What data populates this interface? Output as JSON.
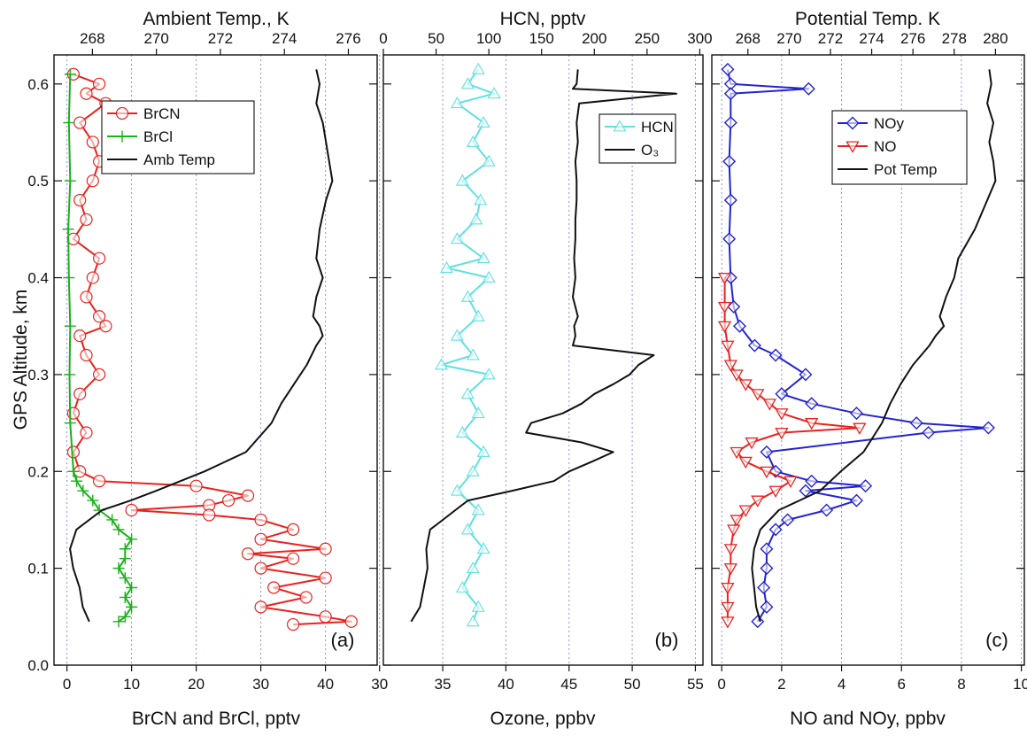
{
  "chart_data": [
    {
      "panel": "(a)",
      "type": "line",
      "y_axis": {
        "label": "GPS Altitude, km",
        "range": [
          0.0,
          0.63
        ],
        "ticks": [
          0.0,
          0.1,
          0.2,
          0.3,
          0.4,
          0.5,
          0.6
        ]
      },
      "x_bottom": {
        "label": "BrCN and BrCl, pptv",
        "range": [
          -2,
          48
        ],
        "ticks": [
          0,
          10,
          20,
          30,
          40
        ],
        "grid": true
      },
      "x_top": {
        "label": "Ambient Temp., K",
        "range": [
          266.8,
          276.9
        ],
        "ticks": [
          268,
          270,
          272,
          274,
          276
        ]
      },
      "legend": {
        "placement": "top-left"
      },
      "series": [
        {
          "name": "BrCN",
          "axis": "bottom",
          "color": "#e8231e",
          "marker": "circle",
          "y": [
            0.61,
            0.6,
            0.59,
            0.58,
            0.56,
            0.54,
            0.52,
            0.5,
            0.48,
            0.46,
            0.44,
            0.42,
            0.4,
            0.38,
            0.36,
            0.35,
            0.34,
            0.32,
            0.3,
            0.28,
            0.26,
            0.24,
            0.22,
            0.2,
            0.19,
            0.185,
            0.175,
            0.17,
            0.165,
            0.16,
            0.155,
            0.15,
            0.14,
            0.13,
            0.12,
            0.115,
            0.11,
            0.1,
            0.09,
            0.08,
            0.07,
            0.06,
            0.05,
            0.045,
            0.042
          ],
          "x": [
            1,
            5,
            3,
            6,
            2,
            4,
            5,
            4,
            2,
            3,
            1,
            5,
            4,
            3,
            5,
            6,
            2,
            3,
            5,
            2,
            1,
            3,
            1,
            2,
            5,
            20,
            28,
            25,
            22,
            10,
            22,
            30,
            35,
            30,
            40,
            28,
            35,
            30,
            40,
            32,
            37,
            30,
            40,
            44,
            35
          ]
        },
        {
          "name": "BrCl",
          "axis": "bottom",
          "color": "#19b219",
          "marker": "plus",
          "y": [
            0.61,
            0.56,
            0.5,
            0.45,
            0.4,
            0.35,
            0.3,
            0.25,
            0.2,
            0.19,
            0.18,
            0.17,
            0.16,
            0.15,
            0.14,
            0.13,
            0.12,
            0.11,
            0.1,
            0.09,
            0.08,
            0.07,
            0.06,
            0.05,
            0.045
          ],
          "x": [
            0.5,
            0.3,
            0.5,
            0.2,
            0.3,
            0.5,
            0.4,
            0.5,
            1,
            1.5,
            2.5,
            4,
            5,
            7,
            8,
            10,
            9,
            9,
            8,
            9,
            10,
            9,
            10,
            9,
            8
          ]
        },
        {
          "name": "Amb Temp",
          "axis": "top",
          "color": "#111111",
          "marker": "none",
          "y": [
            0.615,
            0.6,
            0.58,
            0.56,
            0.54,
            0.52,
            0.5,
            0.48,
            0.45,
            0.42,
            0.4,
            0.38,
            0.36,
            0.35,
            0.34,
            0.33,
            0.31,
            0.29,
            0.27,
            0.25,
            0.22,
            0.2,
            0.18,
            0.17,
            0.16,
            0.14,
            0.12,
            0.1,
            0.08,
            0.06,
            0.045
          ],
          "x": [
            275.0,
            275.1,
            275.0,
            275.2,
            275.3,
            275.4,
            275.5,
            275.3,
            275.1,
            275.0,
            275.2,
            275.0,
            274.9,
            275.1,
            275.2,
            275.0,
            274.7,
            274.3,
            273.9,
            273.6,
            272.8,
            271.5,
            270.0,
            269.2,
            268.3,
            267.5,
            267.3,
            267.4,
            267.6,
            267.7,
            267.9
          ]
        }
      ],
      "panel_label": "(a)"
    },
    {
      "panel": "(b)",
      "type": "line",
      "y_axis": {
        "range": [
          0.0,
          0.63
        ]
      },
      "x_bottom": {
        "label": "Ozone, ppbv",
        "range": [
          30.3,
          55.6
        ],
        "ticks": [
          30,
          35,
          40,
          45,
          50,
          55
        ],
        "grid": true
      },
      "x_top": {
        "label": "HCN, pptv",
        "range": [
          0,
          303
        ],
        "ticks": [
          0,
          50,
          100,
          150,
          200,
          250,
          300
        ]
      },
      "legend": {
        "placement": "top-right"
      },
      "series": [
        {
          "name": "HCN",
          "axis": "top",
          "color": "#5fe0e0",
          "marker": "triangle",
          "y": [
            0.615,
            0.6,
            0.59,
            0.58,
            0.56,
            0.54,
            0.52,
            0.5,
            0.48,
            0.46,
            0.44,
            0.42,
            0.41,
            0.4,
            0.38,
            0.36,
            0.34,
            0.32,
            0.31,
            0.3,
            0.28,
            0.26,
            0.24,
            0.22,
            0.2,
            0.18,
            0.16,
            0.14,
            0.12,
            0.1,
            0.08,
            0.06,
            0.045
          ],
          "x": [
            90,
            80,
            105,
            70,
            95,
            85,
            100,
            75,
            92,
            88,
            70,
            95,
            60,
            100,
            80,
            90,
            70,
            85,
            55,
            100,
            80,
            90,
            75,
            95,
            85,
            70,
            90,
            80,
            95,
            85,
            75,
            90,
            85
          ]
        },
        {
          "name": "O₃",
          "axis": "bottom",
          "color": "#111111",
          "marker": "none",
          "y": [
            0.615,
            0.6,
            0.595,
            0.59,
            0.58,
            0.56,
            0.54,
            0.52,
            0.5,
            0.48,
            0.46,
            0.44,
            0.42,
            0.4,
            0.38,
            0.36,
            0.35,
            0.34,
            0.33,
            0.32,
            0.31,
            0.3,
            0.29,
            0.28,
            0.27,
            0.26,
            0.25,
            0.24,
            0.23,
            0.22,
            0.21,
            0.2,
            0.19,
            0.18,
            0.17,
            0.16,
            0.15,
            0.14,
            0.12,
            0.1,
            0.08,
            0.06,
            0.045
          ],
          "x": [
            45.7,
            45.6,
            45.3,
            53.5,
            45.8,
            45.6,
            45.7,
            45.5,
            45.6,
            45.6,
            45.5,
            45.5,
            45.4,
            45.5,
            45.3,
            45.7,
            45.4,
            45.5,
            45.3,
            51.7,
            50.5,
            49.8,
            48.5,
            47.0,
            46.0,
            44.5,
            42.0,
            41.6,
            46.0,
            48.5,
            46.8,
            45.0,
            43.8,
            40.5,
            37.0,
            36.0,
            35.0,
            34.0,
            33.7,
            33.8,
            33.5,
            33.2,
            32.5
          ]
        }
      ],
      "panel_label": "(b)"
    },
    {
      "panel": "(c)",
      "type": "line",
      "y_axis": {
        "range": [
          0.0,
          0.63
        ]
      },
      "x_bottom": {
        "label": "NO and NOy, ppbv",
        "range": [
          -0.33,
          10.1
        ],
        "ticks": [
          0,
          2,
          4,
          6,
          8,
          10
        ],
        "grid": true
      },
      "x_top": {
        "label": "Potential Temp. K",
        "range": [
          266.25,
          281.4
        ],
        "ticks": [
          268,
          270,
          272,
          274,
          276,
          278,
          280
        ]
      },
      "legend": {
        "placement": "top-right"
      },
      "series": [
        {
          "name": "NOy",
          "axis": "bottom",
          "color": "#2323d2",
          "marker": "diamond",
          "y": [
            0.615,
            0.6,
            0.595,
            0.59,
            0.56,
            0.52,
            0.48,
            0.44,
            0.4,
            0.37,
            0.35,
            0.33,
            0.32,
            0.3,
            0.28,
            0.27,
            0.26,
            0.25,
            0.245,
            0.24,
            0.22,
            0.2,
            0.19,
            0.185,
            0.18,
            0.17,
            0.16,
            0.15,
            0.14,
            0.12,
            0.1,
            0.08,
            0.06,
            0.045
          ],
          "x": [
            0.2,
            0.3,
            2.9,
            0.3,
            0.3,
            0.25,
            0.3,
            0.25,
            0.3,
            0.4,
            0.6,
            1.1,
            1.8,
            2.8,
            2.0,
            3.0,
            4.5,
            6.5,
            8.9,
            6.9,
            1.5,
            1.8,
            3.0,
            4.8,
            2.8,
            4.5,
            3.5,
            2.2,
            1.8,
            1.5,
            1.5,
            1.4,
            1.5,
            1.2
          ]
        },
        {
          "name": "NO",
          "axis": "bottom",
          "color": "#e8231e",
          "marker": "triangle-down",
          "y": [
            0.4,
            0.37,
            0.35,
            0.33,
            0.31,
            0.3,
            0.29,
            0.28,
            0.27,
            0.26,
            0.25,
            0.245,
            0.24,
            0.23,
            0.22,
            0.21,
            0.2,
            0.19,
            0.18,
            0.17,
            0.16,
            0.15,
            0.14,
            0.12,
            0.1,
            0.08,
            0.06,
            0.045
          ],
          "x": [
            0.1,
            0.1,
            0.1,
            0.2,
            0.3,
            0.5,
            0.8,
            1.2,
            1.6,
            2.0,
            3.0,
            4.6,
            2.0,
            1.0,
            0.5,
            0.8,
            1.5,
            2.3,
            1.8,
            1.2,
            0.8,
            0.5,
            0.4,
            0.3,
            0.3,
            0.2,
            0.2,
            0.2
          ]
        },
        {
          "name": "Pot Temp",
          "axis": "top",
          "color": "#111111",
          "marker": "none",
          "y": [
            0.615,
            0.6,
            0.58,
            0.56,
            0.54,
            0.52,
            0.5,
            0.48,
            0.45,
            0.42,
            0.4,
            0.38,
            0.36,
            0.35,
            0.34,
            0.33,
            0.31,
            0.29,
            0.27,
            0.25,
            0.22,
            0.2,
            0.18,
            0.17,
            0.16,
            0.14,
            0.12,
            0.1,
            0.08,
            0.06,
            0.045
          ],
          "x": [
            279.7,
            279.8,
            279.6,
            279.9,
            279.7,
            279.9,
            280.0,
            279.6,
            279.0,
            278.2,
            278.0,
            277.6,
            277.3,
            277.5,
            277.1,
            276.8,
            276.0,
            275.4,
            274.9,
            274.5,
            273.6,
            272.5,
            271.5,
            270.5,
            269.5,
            268.6,
            268.3,
            268.2,
            268.3,
            268.4,
            268.6
          ]
        }
      ],
      "panel_label": "(c)"
    }
  ]
}
